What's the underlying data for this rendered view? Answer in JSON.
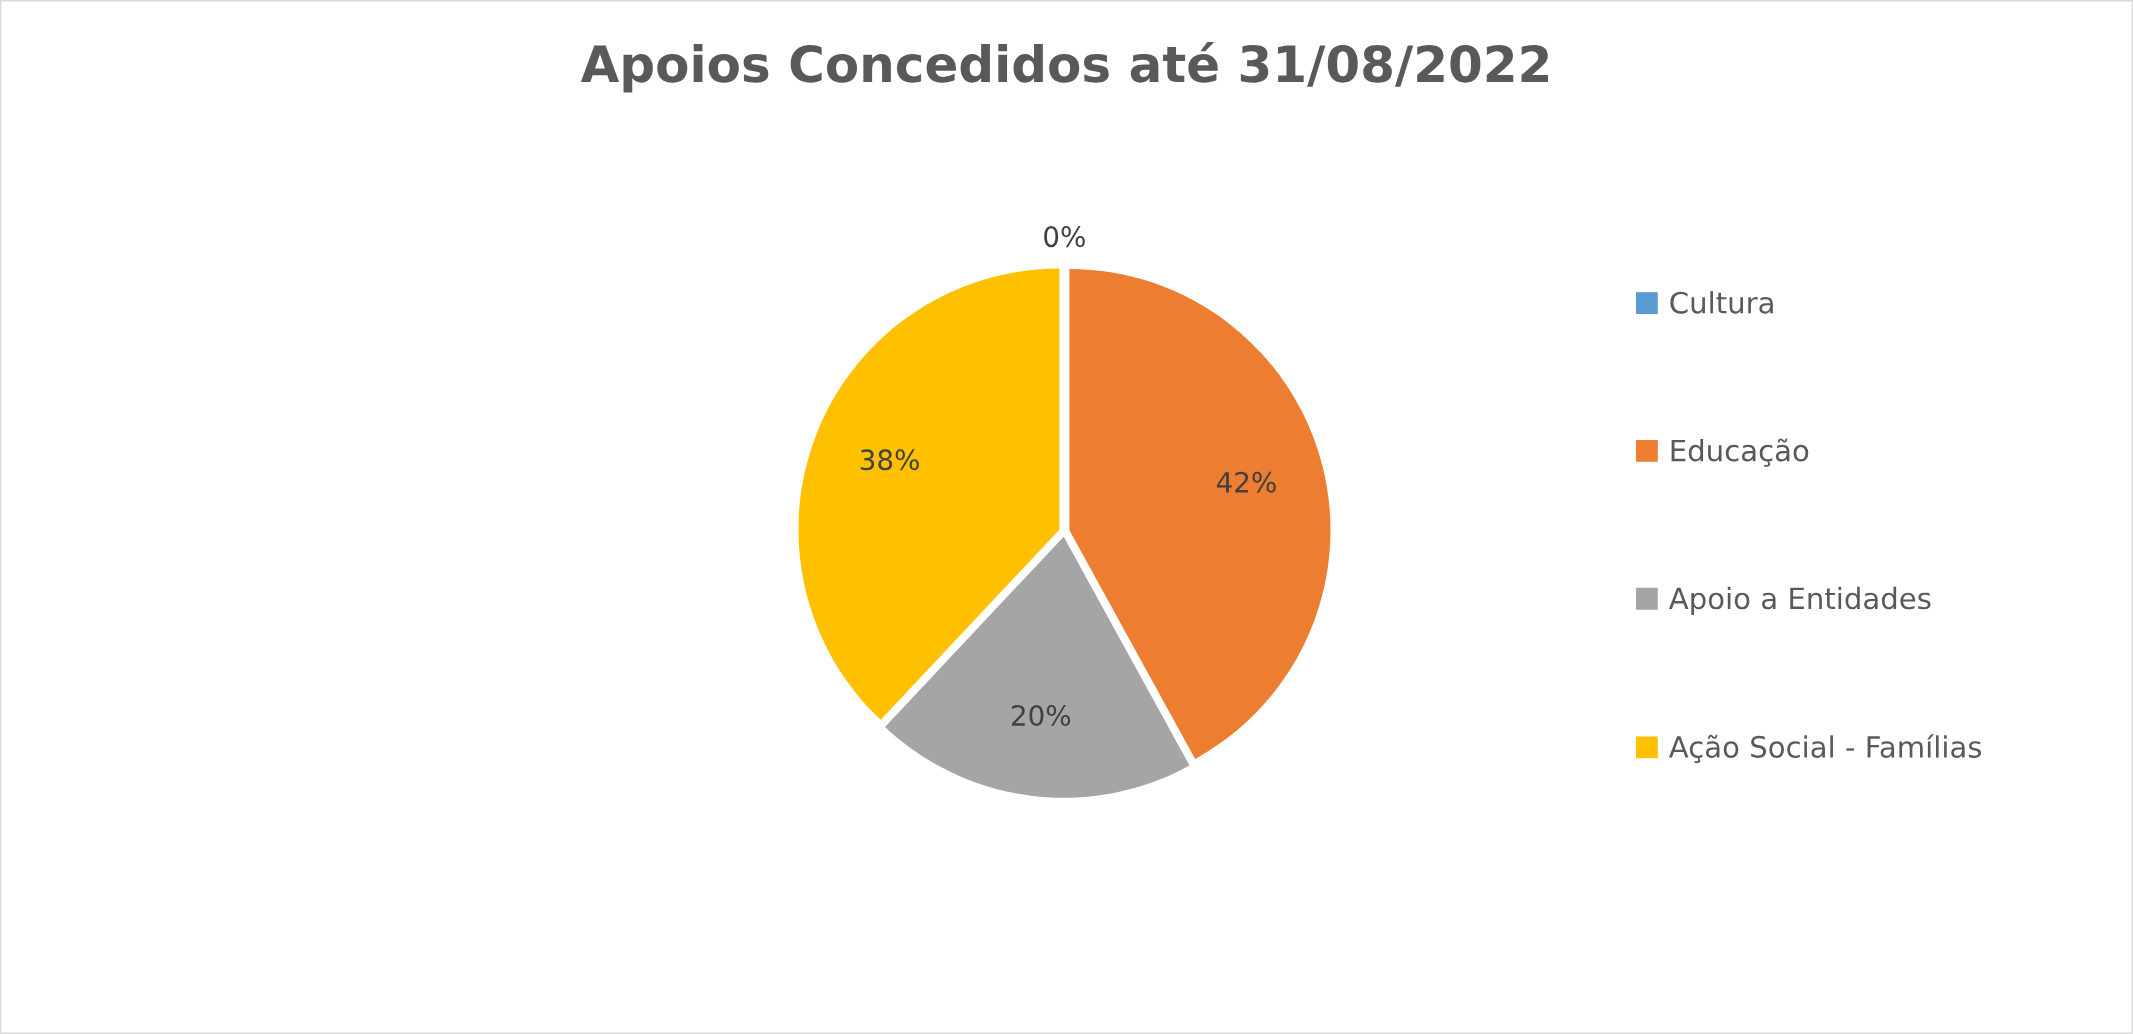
{
  "chart_data": {
    "type": "pie",
    "title": "Apoios Concedidos até 31/08/2022",
    "categories": [
      "Cultura",
      "Educação",
      "Apoio a Entidades",
      "Ação Social - Famílias"
    ],
    "values": [
      0,
      42,
      20,
      38
    ],
    "colors": [
      "#5b9bd5",
      "#ed7d31",
      "#a5a5a5",
      "#ffc000"
    ],
    "value_labels": [
      "0%",
      "42%",
      "20%",
      "38%"
    ],
    "legend": "right"
  }
}
